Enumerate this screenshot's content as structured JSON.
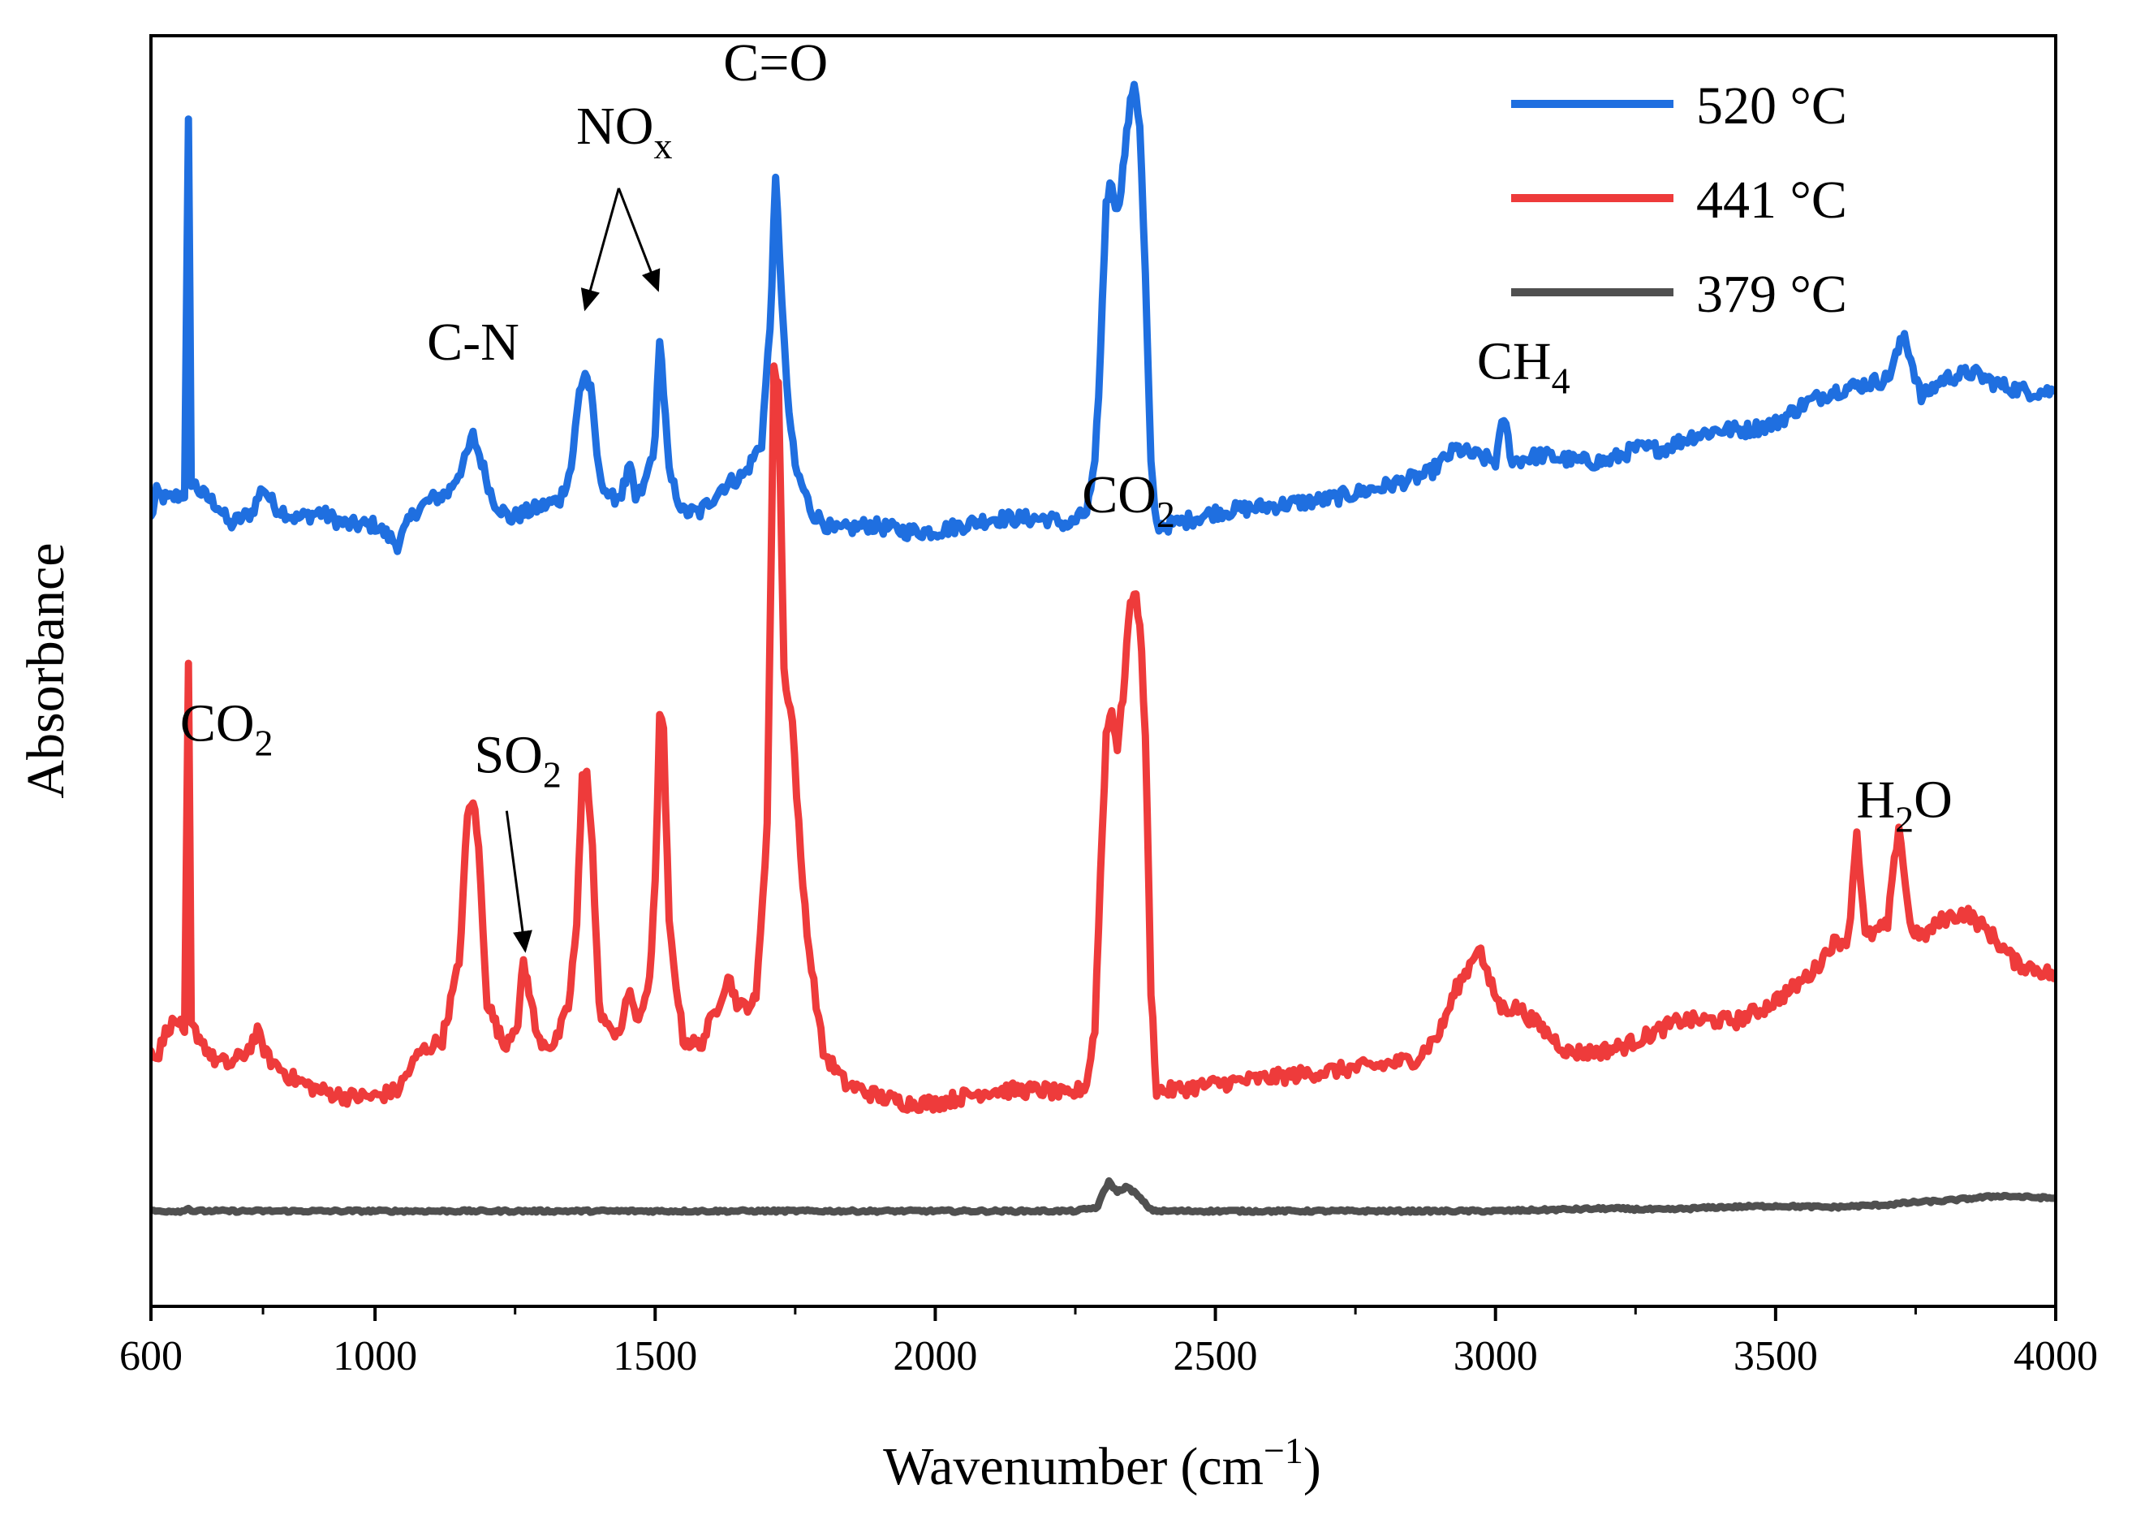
{
  "chart_data": {
    "type": "line",
    "title": "",
    "xlabel": "Wavenumber",
    "xlabel_unit": "(cm",
    "xlabel_unit_exp": "−1",
    "xlabel_unit_close": ")",
    "ylabel": "Absorbance",
    "xlim": [
      600,
      4000
    ],
    "ylim": [
      0,
      1
    ],
    "x_ticks": [
      600,
      1000,
      1500,
      2000,
      2500,
      3000,
      3500,
      4000
    ],
    "x_tick_labels": [
      "600",
      "1000",
      "1500",
      "2000",
      "2500",
      "3000",
      "3500",
      "4000"
    ],
    "grid": false,
    "legend_position": "top-right",
    "series": [
      {
        "name": "520 °C",
        "color": "#1f6fe0",
        "points": [
          [
            600,
            0.62
          ],
          [
            610,
            0.64
          ],
          [
            630,
            0.635
          ],
          [
            660,
            0.64
          ],
          [
            667,
            0.93
          ],
          [
            672,
            0.65
          ],
          [
            690,
            0.64
          ],
          [
            720,
            0.63
          ],
          [
            740,
            0.615
          ],
          [
            780,
            0.625
          ],
          [
            800,
            0.645
          ],
          [
            820,
            0.63
          ],
          [
            860,
            0.62
          ],
          [
            900,
            0.625
          ],
          [
            950,
            0.615
          ],
          [
            1000,
            0.615
          ],
          [
            1040,
            0.6
          ],
          [
            1070,
            0.625
          ],
          [
            1100,
            0.635
          ],
          [
            1130,
            0.64
          ],
          [
            1160,
            0.665
          ],
          [
            1175,
            0.685
          ],
          [
            1190,
            0.665
          ],
          [
            1210,
            0.635
          ],
          [
            1240,
            0.62
          ],
          [
            1270,
            0.625
          ],
          [
            1300,
            0.63
          ],
          [
            1330,
            0.635
          ],
          [
            1350,
            0.66
          ],
          [
            1365,
            0.72
          ],
          [
            1375,
            0.735
          ],
          [
            1385,
            0.72
          ],
          [
            1400,
            0.655
          ],
          [
            1420,
            0.635
          ],
          [
            1440,
            0.64
          ],
          [
            1455,
            0.66
          ],
          [
            1465,
            0.635
          ],
          [
            1480,
            0.645
          ],
          [
            1500,
            0.68
          ],
          [
            1508,
            0.765
          ],
          [
            1515,
            0.72
          ],
          [
            1525,
            0.655
          ],
          [
            1550,
            0.625
          ],
          [
            1580,
            0.625
          ],
          [
            1620,
            0.645
          ],
          [
            1660,
            0.655
          ],
          [
            1690,
            0.68
          ],
          [
            1705,
            0.77
          ],
          [
            1715,
            0.885
          ],
          [
            1722,
            0.83
          ],
          [
            1735,
            0.72
          ],
          [
            1750,
            0.66
          ],
          [
            1780,
            0.625
          ],
          [
            1820,
            0.61
          ],
          [
            1880,
            0.615
          ],
          [
            1950,
            0.61
          ],
          [
            2000,
            0.61
          ],
          [
            2050,
            0.615
          ],
          [
            2100,
            0.62
          ],
          [
            2150,
            0.62
          ],
          [
            2200,
            0.62
          ],
          [
            2240,
            0.615
          ],
          [
            2270,
            0.625
          ],
          [
            2285,
            0.66
          ],
          [
            2295,
            0.75
          ],
          [
            2305,
            0.87
          ],
          [
            2315,
            0.885
          ],
          [
            2325,
            0.86
          ],
          [
            2335,
            0.895
          ],
          [
            2345,
            0.935
          ],
          [
            2355,
            0.965
          ],
          [
            2365,
            0.93
          ],
          [
            2375,
            0.81
          ],
          [
            2385,
            0.66
          ],
          [
            2395,
            0.615
          ],
          [
            2420,
            0.615
          ],
          [
            2500,
            0.625
          ],
          [
            2600,
            0.63
          ],
          [
            2700,
            0.635
          ],
          [
            2800,
            0.645
          ],
          [
            2880,
            0.655
          ],
          [
            2930,
            0.675
          ],
          [
            2960,
            0.67
          ],
          [
            3000,
            0.665
          ],
          [
            3015,
            0.7
          ],
          [
            3030,
            0.665
          ],
          [
            3080,
            0.67
          ],
          [
            3150,
            0.665
          ],
          [
            3200,
            0.665
          ],
          [
            3250,
            0.675
          ],
          [
            3300,
            0.675
          ],
          [
            3350,
            0.685
          ],
          [
            3400,
            0.69
          ],
          [
            3450,
            0.69
          ],
          [
            3500,
            0.695
          ],
          [
            3550,
            0.71
          ],
          [
            3600,
            0.72
          ],
          [
            3650,
            0.725
          ],
          [
            3700,
            0.73
          ],
          [
            3730,
            0.765
          ],
          [
            3745,
            0.74
          ],
          [
            3760,
            0.715
          ],
          [
            3800,
            0.73
          ],
          [
            3850,
            0.735
          ],
          [
            3900,
            0.725
          ],
          [
            3950,
            0.72
          ],
          [
            4000,
            0.72
          ]
        ]
      },
      {
        "name": "441 °C",
        "color": "#ee3b3b",
        "points": [
          [
            600,
            0.205
          ],
          [
            610,
            0.195
          ],
          [
            630,
            0.22
          ],
          [
            650,
            0.225
          ],
          [
            660,
            0.21
          ],
          [
            667,
            0.505
          ],
          [
            672,
            0.22
          ],
          [
            690,
            0.21
          ],
          [
            710,
            0.195
          ],
          [
            740,
            0.19
          ],
          [
            770,
            0.2
          ],
          [
            790,
            0.215
          ],
          [
            810,
            0.195
          ],
          [
            850,
            0.18
          ],
          [
            900,
            0.17
          ],
          [
            950,
            0.165
          ],
          [
            1000,
            0.165
          ],
          [
            1040,
            0.17
          ],
          [
            1080,
            0.2
          ],
          [
            1120,
            0.21
          ],
          [
            1150,
            0.27
          ],
          [
            1165,
            0.385
          ],
          [
            1175,
            0.4
          ],
          [
            1185,
            0.36
          ],
          [
            1200,
            0.24
          ],
          [
            1230,
            0.205
          ],
          [
            1255,
            0.225
          ],
          [
            1265,
            0.27
          ],
          [
            1275,
            0.25
          ],
          [
            1290,
            0.21
          ],
          [
            1320,
            0.205
          ],
          [
            1345,
            0.235
          ],
          [
            1360,
            0.3
          ],
          [
            1370,
            0.415
          ],
          [
            1378,
            0.425
          ],
          [
            1388,
            0.36
          ],
          [
            1400,
            0.235
          ],
          [
            1420,
            0.215
          ],
          [
            1440,
            0.22
          ],
          [
            1455,
            0.25
          ],
          [
            1470,
            0.22
          ],
          [
            1490,
            0.26
          ],
          [
            1500,
            0.33
          ],
          [
            1508,
            0.465
          ],
          [
            1515,
            0.45
          ],
          [
            1525,
            0.3
          ],
          [
            1550,
            0.21
          ],
          [
            1580,
            0.205
          ],
          [
            1610,
            0.235
          ],
          [
            1630,
            0.26
          ],
          [
            1650,
            0.235
          ],
          [
            1680,
            0.24
          ],
          [
            1700,
            0.38
          ],
          [
            1712,
            0.735
          ],
          [
            1720,
            0.73
          ],
          [
            1730,
            0.5
          ],
          [
            1745,
            0.46
          ],
          [
            1760,
            0.35
          ],
          [
            1775,
            0.28
          ],
          [
            1800,
            0.2
          ],
          [
            1840,
            0.175
          ],
          [
            1900,
            0.165
          ],
          [
            1950,
            0.16
          ],
          [
            2000,
            0.16
          ],
          [
            2050,
            0.165
          ],
          [
            2100,
            0.17
          ],
          [
            2150,
            0.17
          ],
          [
            2200,
            0.17
          ],
          [
            2240,
            0.165
          ],
          [
            2270,
            0.175
          ],
          [
            2285,
            0.22
          ],
          [
            2295,
            0.34
          ],
          [
            2305,
            0.45
          ],
          [
            2315,
            0.47
          ],
          [
            2325,
            0.44
          ],
          [
            2335,
            0.48
          ],
          [
            2345,
            0.54
          ],
          [
            2355,
            0.565
          ],
          [
            2365,
            0.54
          ],
          [
            2375,
            0.45
          ],
          [
            2385,
            0.25
          ],
          [
            2395,
            0.17
          ],
          [
            2420,
            0.17
          ],
          [
            2500,
            0.175
          ],
          [
            2600,
            0.18
          ],
          [
            2700,
            0.185
          ],
          [
            2800,
            0.19
          ],
          [
            2860,
            0.195
          ],
          [
            2900,
            0.215
          ],
          [
            2930,
            0.25
          ],
          [
            2950,
            0.265
          ],
          [
            2970,
            0.285
          ],
          [
            2985,
            0.26
          ],
          [
            3010,
            0.235
          ],
          [
            3040,
            0.235
          ],
          [
            3080,
            0.22
          ],
          [
            3130,
            0.2
          ],
          [
            3180,
            0.2
          ],
          [
            3230,
            0.205
          ],
          [
            3280,
            0.215
          ],
          [
            3330,
            0.225
          ],
          [
            3380,
            0.225
          ],
          [
            3430,
            0.225
          ],
          [
            3480,
            0.235
          ],
          [
            3530,
            0.25
          ],
          [
            3570,
            0.265
          ],
          [
            3600,
            0.285
          ],
          [
            3630,
            0.29
          ],
          [
            3645,
            0.375
          ],
          [
            3660,
            0.29
          ],
          [
            3700,
            0.3
          ],
          [
            3720,
            0.38
          ],
          [
            3740,
            0.3
          ],
          [
            3760,
            0.29
          ],
          [
            3800,
            0.305
          ],
          [
            3840,
            0.31
          ],
          [
            3880,
            0.295
          ],
          [
            3930,
            0.27
          ],
          [
            3970,
            0.265
          ],
          [
            4000,
            0.26
          ]
        ]
      },
      {
        "name": "379 °C",
        "color": "#505050",
        "points": [
          [
            600,
            0.075
          ],
          [
            660,
            0.075
          ],
          [
            667,
            0.078
          ],
          [
            672,
            0.075
          ],
          [
            1000,
            0.075
          ],
          [
            1500,
            0.075
          ],
          [
            2000,
            0.075
          ],
          [
            2250,
            0.075
          ],
          [
            2290,
            0.078
          ],
          [
            2300,
            0.09
          ],
          [
            2310,
            0.098
          ],
          [
            2325,
            0.09
          ],
          [
            2340,
            0.094
          ],
          [
            2355,
            0.09
          ],
          [
            2370,
            0.083
          ],
          [
            2385,
            0.076
          ],
          [
            2400,
            0.075
          ],
          [
            2800,
            0.075
          ],
          [
            3000,
            0.075
          ],
          [
            3100,
            0.076
          ],
          [
            3200,
            0.077
          ],
          [
            3300,
            0.076
          ],
          [
            3400,
            0.078
          ],
          [
            3500,
            0.079
          ],
          [
            3600,
            0.078
          ],
          [
            3700,
            0.08
          ],
          [
            3750,
            0.082
          ],
          [
            3800,
            0.083
          ],
          [
            3850,
            0.085
          ],
          [
            3900,
            0.087
          ],
          [
            3950,
            0.086
          ],
          [
            4000,
            0.085
          ]
        ]
      }
    ],
    "annotations": [
      {
        "base": "C-N",
        "sub": "",
        "tail": "",
        "x": 1175,
        "y": 0.745
      },
      {
        "base": "NO",
        "sub": "x",
        "tail": "",
        "x": 1445,
        "y": 0.915
      },
      {
        "base": "C=O",
        "sub": "",
        "tail": "",
        "x": 1715,
        "y": 0.965
      },
      {
        "base": "CH",
        "sub": "4",
        "tail": "",
        "x": 3050,
        "y": 0.73
      },
      {
        "base": "CO",
        "sub": "2",
        "tail": "",
        "x": 2345,
        "y": 0.625
      },
      {
        "base": "CO",
        "sub": "2",
        "tail": "",
        "x": 735,
        "y": 0.445
      },
      {
        "base": "SO",
        "sub": "2",
        "tail": "",
        "x": 1255,
        "y": 0.42
      },
      {
        "base": "H",
        "sub": "2",
        "tail": "O",
        "x": 3730,
        "y": 0.385
      }
    ],
    "arrows": [
      {
        "label": "NOx-arrow-1",
        "from": [
          1435,
          0.88
        ],
        "to": [
          1375,
          0.785
        ]
      },
      {
        "label": "NOx-arrow-2",
        "from": [
          1435,
          0.88
        ],
        "to": [
          1505,
          0.8
        ]
      },
      {
        "label": "SO2-arrow",
        "from": [
          1235,
          0.39
        ],
        "to": [
          1268,
          0.28
        ]
      }
    ]
  }
}
